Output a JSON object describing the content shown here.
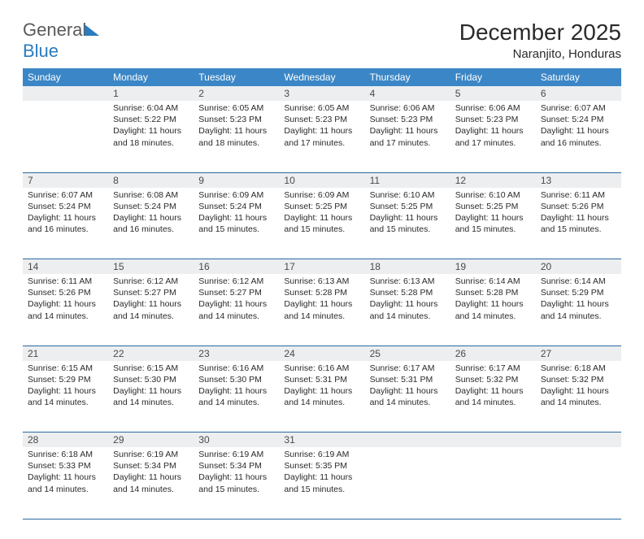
{
  "logo": {
    "text1": "General",
    "text2": "Blue"
  },
  "title": "December 2025",
  "subtitle": "Naranjito, Honduras",
  "colors": {
    "header_bg": "#3b86c6",
    "header_text": "#ffffff",
    "daynum_bg": "#eceeef",
    "border": "#2b6aa3",
    "text": "#2a2a2a",
    "logo_gray": "#5a5a5a",
    "logo_blue": "#2b7bbf"
  },
  "weekdays": [
    "Sunday",
    "Monday",
    "Tuesday",
    "Wednesday",
    "Thursday",
    "Friday",
    "Saturday"
  ],
  "weeks": [
    [
      null,
      {
        "d": "1",
        "sr": "Sunrise: 6:04 AM",
        "ss": "Sunset: 5:22 PM",
        "dl1": "Daylight: 11 hours",
        "dl2": "and 18 minutes."
      },
      {
        "d": "2",
        "sr": "Sunrise: 6:05 AM",
        "ss": "Sunset: 5:23 PM",
        "dl1": "Daylight: 11 hours",
        "dl2": "and 18 minutes."
      },
      {
        "d": "3",
        "sr": "Sunrise: 6:05 AM",
        "ss": "Sunset: 5:23 PM",
        "dl1": "Daylight: 11 hours",
        "dl2": "and 17 minutes."
      },
      {
        "d": "4",
        "sr": "Sunrise: 6:06 AM",
        "ss": "Sunset: 5:23 PM",
        "dl1": "Daylight: 11 hours",
        "dl2": "and 17 minutes."
      },
      {
        "d": "5",
        "sr": "Sunrise: 6:06 AM",
        "ss": "Sunset: 5:23 PM",
        "dl1": "Daylight: 11 hours",
        "dl2": "and 17 minutes."
      },
      {
        "d": "6",
        "sr": "Sunrise: 6:07 AM",
        "ss": "Sunset: 5:24 PM",
        "dl1": "Daylight: 11 hours",
        "dl2": "and 16 minutes."
      }
    ],
    [
      {
        "d": "7",
        "sr": "Sunrise: 6:07 AM",
        "ss": "Sunset: 5:24 PM",
        "dl1": "Daylight: 11 hours",
        "dl2": "and 16 minutes."
      },
      {
        "d": "8",
        "sr": "Sunrise: 6:08 AM",
        "ss": "Sunset: 5:24 PM",
        "dl1": "Daylight: 11 hours",
        "dl2": "and 16 minutes."
      },
      {
        "d": "9",
        "sr": "Sunrise: 6:09 AM",
        "ss": "Sunset: 5:24 PM",
        "dl1": "Daylight: 11 hours",
        "dl2": "and 15 minutes."
      },
      {
        "d": "10",
        "sr": "Sunrise: 6:09 AM",
        "ss": "Sunset: 5:25 PM",
        "dl1": "Daylight: 11 hours",
        "dl2": "and 15 minutes."
      },
      {
        "d": "11",
        "sr": "Sunrise: 6:10 AM",
        "ss": "Sunset: 5:25 PM",
        "dl1": "Daylight: 11 hours",
        "dl2": "and 15 minutes."
      },
      {
        "d": "12",
        "sr": "Sunrise: 6:10 AM",
        "ss": "Sunset: 5:25 PM",
        "dl1": "Daylight: 11 hours",
        "dl2": "and 15 minutes."
      },
      {
        "d": "13",
        "sr": "Sunrise: 6:11 AM",
        "ss": "Sunset: 5:26 PM",
        "dl1": "Daylight: 11 hours",
        "dl2": "and 15 minutes."
      }
    ],
    [
      {
        "d": "14",
        "sr": "Sunrise: 6:11 AM",
        "ss": "Sunset: 5:26 PM",
        "dl1": "Daylight: 11 hours",
        "dl2": "and 14 minutes."
      },
      {
        "d": "15",
        "sr": "Sunrise: 6:12 AM",
        "ss": "Sunset: 5:27 PM",
        "dl1": "Daylight: 11 hours",
        "dl2": "and 14 minutes."
      },
      {
        "d": "16",
        "sr": "Sunrise: 6:12 AM",
        "ss": "Sunset: 5:27 PM",
        "dl1": "Daylight: 11 hours",
        "dl2": "and 14 minutes."
      },
      {
        "d": "17",
        "sr": "Sunrise: 6:13 AM",
        "ss": "Sunset: 5:28 PM",
        "dl1": "Daylight: 11 hours",
        "dl2": "and 14 minutes."
      },
      {
        "d": "18",
        "sr": "Sunrise: 6:13 AM",
        "ss": "Sunset: 5:28 PM",
        "dl1": "Daylight: 11 hours",
        "dl2": "and 14 minutes."
      },
      {
        "d": "19",
        "sr": "Sunrise: 6:14 AM",
        "ss": "Sunset: 5:28 PM",
        "dl1": "Daylight: 11 hours",
        "dl2": "and 14 minutes."
      },
      {
        "d": "20",
        "sr": "Sunrise: 6:14 AM",
        "ss": "Sunset: 5:29 PM",
        "dl1": "Daylight: 11 hours",
        "dl2": "and 14 minutes."
      }
    ],
    [
      {
        "d": "21",
        "sr": "Sunrise: 6:15 AM",
        "ss": "Sunset: 5:29 PM",
        "dl1": "Daylight: 11 hours",
        "dl2": "and 14 minutes."
      },
      {
        "d": "22",
        "sr": "Sunrise: 6:15 AM",
        "ss": "Sunset: 5:30 PM",
        "dl1": "Daylight: 11 hours",
        "dl2": "and 14 minutes."
      },
      {
        "d": "23",
        "sr": "Sunrise: 6:16 AM",
        "ss": "Sunset: 5:30 PM",
        "dl1": "Daylight: 11 hours",
        "dl2": "and 14 minutes."
      },
      {
        "d": "24",
        "sr": "Sunrise: 6:16 AM",
        "ss": "Sunset: 5:31 PM",
        "dl1": "Daylight: 11 hours",
        "dl2": "and 14 minutes."
      },
      {
        "d": "25",
        "sr": "Sunrise: 6:17 AM",
        "ss": "Sunset: 5:31 PM",
        "dl1": "Daylight: 11 hours",
        "dl2": "and 14 minutes."
      },
      {
        "d": "26",
        "sr": "Sunrise: 6:17 AM",
        "ss": "Sunset: 5:32 PM",
        "dl1": "Daylight: 11 hours",
        "dl2": "and 14 minutes."
      },
      {
        "d": "27",
        "sr": "Sunrise: 6:18 AM",
        "ss": "Sunset: 5:32 PM",
        "dl1": "Daylight: 11 hours",
        "dl2": "and 14 minutes."
      }
    ],
    [
      {
        "d": "28",
        "sr": "Sunrise: 6:18 AM",
        "ss": "Sunset: 5:33 PM",
        "dl1": "Daylight: 11 hours",
        "dl2": "and 14 minutes."
      },
      {
        "d": "29",
        "sr": "Sunrise: 6:19 AM",
        "ss": "Sunset: 5:34 PM",
        "dl1": "Daylight: 11 hours",
        "dl2": "and 14 minutes."
      },
      {
        "d": "30",
        "sr": "Sunrise: 6:19 AM",
        "ss": "Sunset: 5:34 PM",
        "dl1": "Daylight: 11 hours",
        "dl2": "and 15 minutes."
      },
      {
        "d": "31",
        "sr": "Sunrise: 6:19 AM",
        "ss": "Sunset: 5:35 PM",
        "dl1": "Daylight: 11 hours",
        "dl2": "and 15 minutes."
      },
      null,
      null,
      null
    ]
  ]
}
